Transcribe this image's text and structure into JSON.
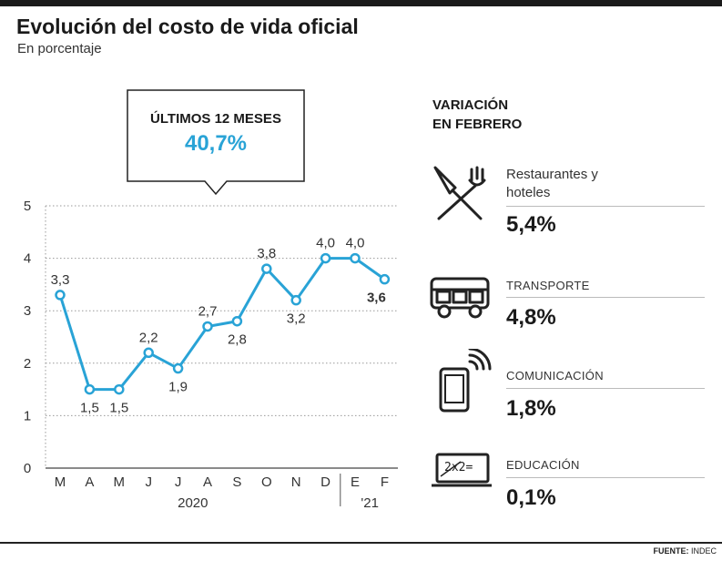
{
  "header": {
    "title": "Evolución del costo de vida oficial",
    "subtitle": "En porcentaje"
  },
  "callout": {
    "label": "ÚLTIMOS 12 MESES",
    "value": "40,7%"
  },
  "variation": {
    "title_line1": "VARIACIÓN",
    "title_line2": "EN FEBRERO",
    "categories": [
      {
        "label_line1": "Restaurantes y",
        "label_line2": "hoteles",
        "value": "5,4%",
        "icon": "utensils-icon"
      },
      {
        "label_line1": "TRANSPORTE",
        "value": "4,8%",
        "icon": "bus-icon"
      },
      {
        "label_line1": "COMUNICACIÓN",
        "value": "1,8%",
        "icon": "smartphone-icon"
      },
      {
        "label_line1": "EDUCACIÓN",
        "value": "0,1%",
        "icon": "blackboard-icon"
      }
    ]
  },
  "source": {
    "label": "FUENTE:",
    "name": "INDEC"
  },
  "colors": {
    "accent": "#29a3d6",
    "text": "#222222",
    "grid": "#999999"
  },
  "chart_data": {
    "type": "line",
    "title": "Evolución del costo de vida oficial",
    "subtitle": "En porcentaje",
    "categories": [
      "M",
      "A",
      "M",
      "J",
      "J",
      "A",
      "S",
      "O",
      "N",
      "D",
      "E",
      "F"
    ],
    "values": [
      3.3,
      1.5,
      1.5,
      2.2,
      1.9,
      2.7,
      2.8,
      3.8,
      3.2,
      4.0,
      4.0,
      3.6
    ],
    "point_labels": [
      "3,3",
      "1,5",
      "1,5",
      "2,2",
      "1,9",
      "2,7",
      "2,8",
      "3,8",
      "3,2",
      "4,0",
      "4,0",
      "3,6"
    ],
    "year_groups": [
      {
        "label": "2020",
        "from": 0,
        "to": 9
      },
      {
        "label": "'21",
        "from": 10,
        "to": 11
      }
    ],
    "ylim": [
      0,
      5
    ],
    "yticks": [
      0,
      1,
      2,
      3,
      4,
      5
    ],
    "grid": true,
    "xlabel": "",
    "ylabel": ""
  }
}
